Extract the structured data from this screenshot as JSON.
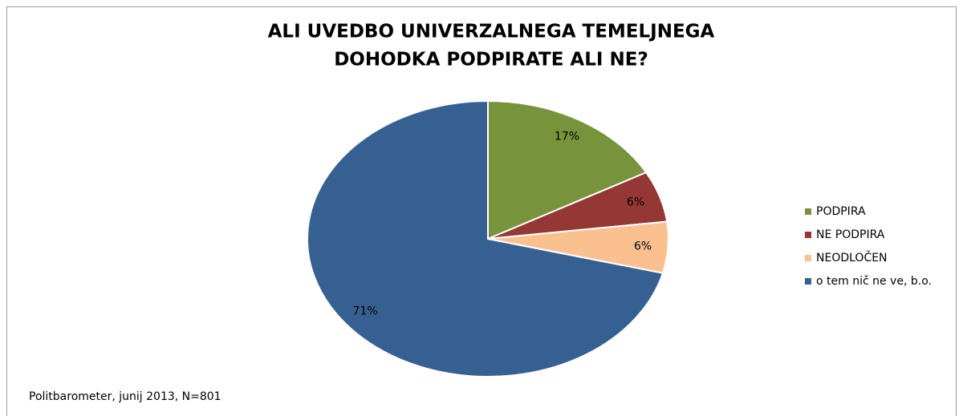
{
  "chart_data": {
    "type": "pie",
    "title": [
      "ALI UVEDBO UNIVERZALNEGA TEMELJNEGA",
      "DOHODKA PODPIRATE ALI NE?"
    ],
    "categories": [
      "PODPIRA",
      "NE PODPIRA",
      "NEODLOČEN",
      "o tem nič ne ve, b.o."
    ],
    "values": [
      17,
      6,
      6,
      71
    ],
    "value_labels": [
      "17%",
      "6%",
      "6%",
      "71%"
    ],
    "colors": [
      "#77933c",
      "#953735",
      "#fac090",
      "#376092"
    ],
    "legend": "right",
    "source": "Politbarometer, junij 2013, N=801"
  }
}
